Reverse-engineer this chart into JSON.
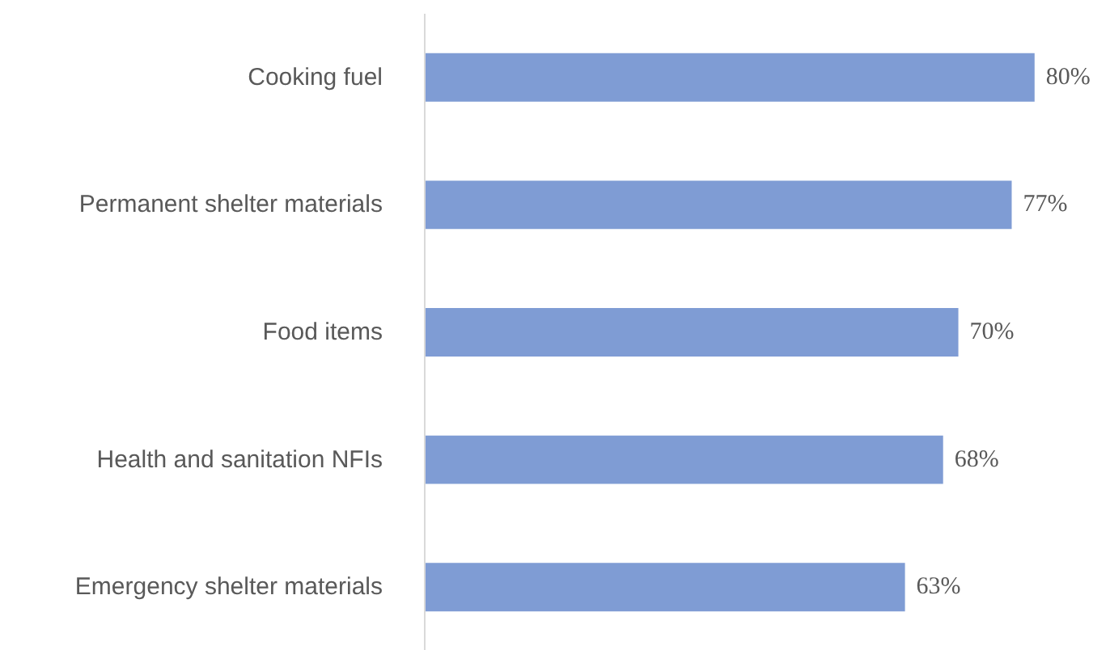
{
  "chart_data": {
    "type": "bar",
    "orientation": "horizontal",
    "categories": [
      "Cooking fuel",
      "Permanent shelter materials",
      "Food items",
      "Health and sanitation NFIs",
      "Emergency shelter materials"
    ],
    "values": [
      80,
      77,
      70,
      68,
      63
    ],
    "value_labels": [
      "80%",
      "77%",
      "70%",
      "68%",
      "63%"
    ],
    "color": "#7f9cd4"
  }
}
